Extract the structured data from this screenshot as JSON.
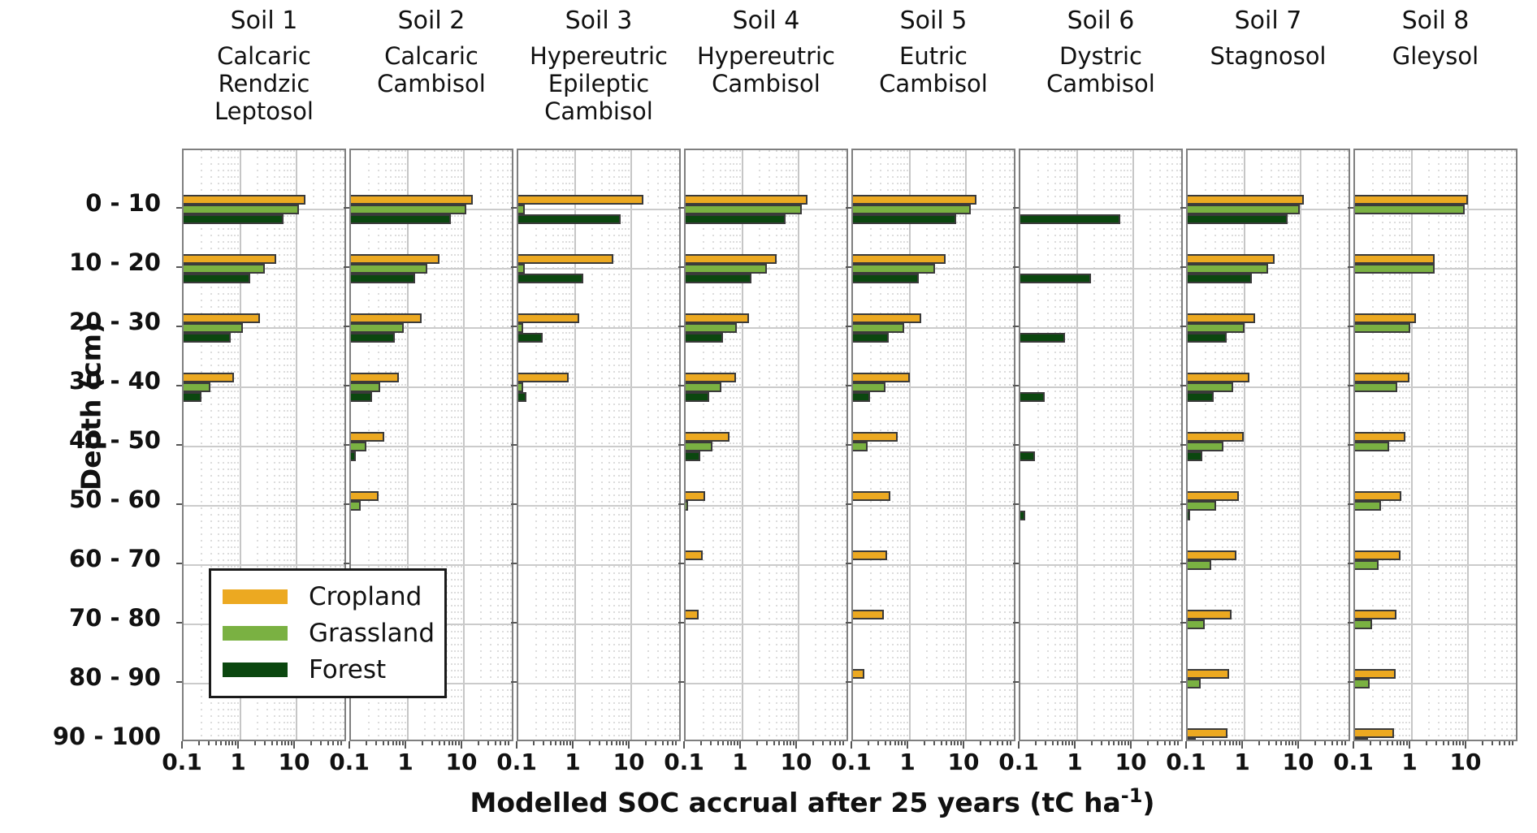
{
  "labels": {
    "ylabel": "Depth (cm)",
    "xlabel_prefix": "Modelled SOC accrual after 25 years (tC ha",
    "xlabel_sup": "-1",
    "xlabel_suffix": ")"
  },
  "colors": {
    "cropland": "#ECA921",
    "grassland": "#7AB142",
    "forest": "#0B470F",
    "bar_edge": "#3A3A3A",
    "panel_edge": "#7F7F7F",
    "grid_major": "#C6C6C6",
    "grid_minor": "#DCDCDC",
    "tick": "#555555"
  },
  "chart_data": {
    "type": "bar",
    "orientation": "horizontal",
    "x_scale": "log",
    "x_tick_labels": [
      "0.1",
      "1",
      "10"
    ],
    "x_tick_values": [
      0.1,
      1,
      10
    ],
    "x_range": [
      0.1,
      85
    ],
    "grid": true,
    "legend_position": "lower-left-overlay",
    "title": "",
    "xlabel": "Modelled SOC accrual after 25 years (tC ha-1)",
    "ylabel": "Depth (cm)",
    "depth_categories": [
      "0 - 10",
      "10 - 20",
      "20 - 30",
      "30 - 40",
      "40 - 50",
      "50 - 60",
      "60 - 70",
      "70 - 80",
      "80 - 90",
      "90 - 100"
    ],
    "series_names": [
      "Cropland",
      "Grassland",
      "Forest"
    ],
    "panels": [
      {
        "id": "Soil 1",
        "name_lines": [
          "Calcaric",
          "Rendzic",
          "Leptosol"
        ],
        "cropland": [
          15,
          4.5,
          2.3,
          0.78,
          null,
          null,
          null,
          null,
          null,
          null
        ],
        "grassland": [
          11.5,
          2.8,
          1.15,
          0.3,
          null,
          null,
          null,
          null,
          null,
          null
        ],
        "forest": [
          6.1,
          1.55,
          0.7,
          0.21,
          null,
          null,
          null,
          null,
          null,
          null
        ]
      },
      {
        "id": "Soil 2",
        "name_lines": [
          "Calcaric",
          "Cambisol"
        ],
        "cropland": [
          15,
          3.8,
          1.8,
          0.71,
          0.39,
          0.31,
          null,
          null,
          null,
          null
        ],
        "grassland": [
          11.5,
          2.3,
          0.86,
          0.33,
          0.19,
          0.15,
          null,
          null,
          null,
          null
        ],
        "forest": [
          6.1,
          1.4,
          0.6,
          0.24,
          0.12,
          null,
          null,
          null,
          null,
          null
        ]
      },
      {
        "id": "Soil 3",
        "name_lines": [
          "Hypereutric",
          "Epileptic",
          "Cambisol"
        ],
        "cropland": [
          17,
          5.0,
          1.2,
          0.79,
          null,
          null,
          null,
          null,
          null,
          null
        ],
        "grassland": [
          0.13,
          0.13,
          0.12,
          0.12,
          null,
          null,
          null,
          null,
          null,
          null
        ],
        "forest": [
          6.7,
          1.45,
          0.27,
          0.14,
          null,
          null,
          null,
          null,
          null,
          null
        ]
      },
      {
        "id": "Soil 4",
        "name_lines": [
          "Hypereutric",
          "Cambisol"
        ],
        "cropland": [
          15,
          4.2,
          1.35,
          0.79,
          0.6,
          0.22,
          0.2,
          0.17,
          null,
          null
        ],
        "grassland": [
          11.8,
          2.8,
          0.82,
          0.43,
          0.3,
          0.11,
          null,
          null,
          null,
          null
        ],
        "forest": [
          6.1,
          1.5,
          0.47,
          0.26,
          0.18,
          null,
          null,
          null,
          null,
          null
        ]
      },
      {
        "id": "Soil 5",
        "name_lines": [
          "Eutric",
          "Cambisol"
        ],
        "cropland": [
          16,
          4.5,
          1.65,
          1.03,
          0.63,
          0.46,
          0.41,
          0.35,
          0.16,
          null
        ],
        "grassland": [
          12.6,
          2.9,
          0.82,
          0.38,
          0.18,
          null,
          null,
          null,
          null,
          null
        ],
        "forest": [
          6.9,
          1.5,
          0.43,
          0.2,
          null,
          null,
          null,
          null,
          null,
          null
        ]
      },
      {
        "id": "Soil 6",
        "name_lines": [
          "Dystric",
          "Cambisol"
        ],
        "cropland": [
          null,
          null,
          null,
          null,
          null,
          null,
          null,
          null,
          null,
          null
        ],
        "grassland": [
          null,
          null,
          null,
          null,
          null,
          null,
          null,
          null,
          null,
          null
        ],
        "forest": [
          6.1,
          1.8,
          0.63,
          0.27,
          0.18,
          0.12,
          null,
          null,
          null,
          null
        ]
      },
      {
        "id": "Soil 7",
        "name_lines": [
          "Stagnosol"
        ],
        "cropland": [
          11.8,
          3.6,
          1.6,
          1.26,
          1.0,
          0.82,
          0.74,
          0.6,
          0.55,
          0.51
        ],
        "grassland": [
          10,
          2.7,
          1.03,
          0.65,
          0.43,
          0.32,
          0.26,
          0.2,
          0.17,
          0.14
        ],
        "forest": [
          6.1,
          1.4,
          0.5,
          0.29,
          0.18,
          0.11,
          null,
          null,
          null,
          null
        ]
      },
      {
        "id": "Soil 8",
        "name_lines": [
          "Gleysol"
        ],
        "cropland": [
          10.3,
          2.65,
          1.23,
          0.93,
          0.79,
          0.67,
          0.65,
          0.55,
          0.53,
          0.5
        ],
        "grassland": [
          9.1,
          2.6,
          0.97,
          0.56,
          0.4,
          0.29,
          0.26,
          0.2,
          0.18,
          0.17
        ],
        "forest": [
          null,
          null,
          null,
          null,
          null,
          null,
          null,
          null,
          null,
          null
        ]
      }
    ]
  }
}
